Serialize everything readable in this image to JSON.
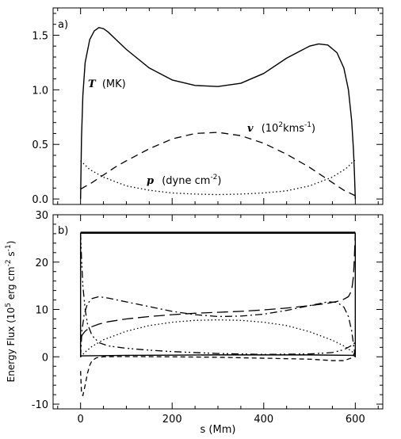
{
  "chart_data": [
    {
      "panel_label": "a)",
      "type": "line",
      "xlim": [
        -60,
        660
      ],
      "ylim": [
        -0.05,
        1.75
      ],
      "yticks": [
        "0.0",
        "0.5",
        "1.0",
        "1.5"
      ],
      "ytick_values": [
        0.0,
        0.5,
        1.0,
        1.5
      ],
      "series": [
        {
          "label_var": "T",
          "label_unit": "(MK)",
          "style": "solid",
          "x": [
            0,
            2,
            5,
            10,
            20,
            30,
            40,
            50,
            60,
            80,
            100,
            150,
            200,
            250,
            300,
            350,
            400,
            450,
            500,
            520,
            540,
            560,
            575,
            585,
            592,
            596,
            598,
            600
          ],
          "y": [
            0.0,
            0.55,
            0.95,
            1.25,
            1.46,
            1.54,
            1.57,
            1.56,
            1.53,
            1.45,
            1.37,
            1.2,
            1.09,
            1.04,
            1.03,
            1.06,
            1.15,
            1.29,
            1.4,
            1.42,
            1.41,
            1.34,
            1.2,
            1.0,
            0.72,
            0.45,
            0.25,
            0.0
          ]
        },
        {
          "label_var": "v",
          "label_unit": "(10",
          "label_sup": "2",
          "label_unit2": "kms",
          "label_sup2": "-1",
          "label_close": ")",
          "style": "dashed",
          "x": [
            0,
            25,
            50,
            75,
            100,
            150,
            200,
            250,
            300,
            350,
            400,
            450,
            500,
            525,
            550,
            575,
            600
          ],
          "y": [
            0.09,
            0.15,
            0.22,
            0.29,
            0.35,
            0.46,
            0.55,
            0.6,
            0.61,
            0.58,
            0.51,
            0.41,
            0.29,
            0.22,
            0.15,
            0.08,
            0.03
          ]
        },
        {
          "label_var": "p",
          "label_unit": "(dyne cm",
          "label_sup": "-2",
          "label_close": ")",
          "style": "dotted",
          "x": [
            0,
            20,
            50,
            100,
            150,
            200,
            250,
            300,
            350,
            400,
            450,
            500,
            550,
            580,
            600
          ],
          "y": [
            0.35,
            0.27,
            0.2,
            0.12,
            0.08,
            0.055,
            0.045,
            0.04,
            0.045,
            0.055,
            0.075,
            0.12,
            0.2,
            0.28,
            0.36
          ]
        }
      ]
    },
    {
      "panel_label": "b)",
      "type": "line",
      "xlim": [
        -60,
        660
      ],
      "ylim": [
        -11,
        30
      ],
      "xticks": [
        "0",
        "200",
        "400",
        "600"
      ],
      "xtick_values": [
        0,
        200,
        400,
        600
      ],
      "yticks": [
        "-10",
        "0",
        "10",
        "20",
        "30"
      ],
      "ytick_values": [
        -10,
        0,
        10,
        20,
        30
      ],
      "xlabel": "s (Mm)",
      "ylabel": "Energy Flux (10",
      "ylabel_sup": "5",
      "ylabel_mid": " erg cm",
      "ylabel_sup2": "-2",
      "ylabel_mid2": " s",
      "ylabel_sup3": "-1",
      "ylabel_close": ")",
      "series": [
        {
          "style": "thick-solid",
          "x": [
            0,
            600
          ],
          "y": [
            26.2,
            26.2
          ]
        },
        {
          "style": "solid",
          "x": [
            0,
            0,
            2,
            5,
            50,
            100,
            200,
            300,
            400,
            500,
            595,
            598,
            600,
            600
          ],
          "y": [
            26.2,
            0.0,
            0.2,
            0.2,
            0.25,
            0.3,
            0.35,
            0.4,
            0.4,
            0.4,
            0.3,
            0.2,
            0.0,
            26.2
          ]
        },
        {
          "style": "long-dashed",
          "x": [
            0,
            5,
            10,
            20,
            40,
            60,
            100,
            150,
            200,
            250,
            300,
            350,
            400,
            450,
            500,
            540,
            570,
            585,
            592,
            596,
            598,
            600
          ],
          "y": [
            4.0,
            4.8,
            5.4,
            6.2,
            6.9,
            7.4,
            8.0,
            8.5,
            8.9,
            9.2,
            9.4,
            9.6,
            9.9,
            10.3,
            10.8,
            11.3,
            11.9,
            12.7,
            14.0,
            17.0,
            21.0,
            26.2
          ]
        },
        {
          "style": "dash-dot",
          "x": [
            0,
            3,
            8,
            15,
            25,
            40,
            60,
            100,
            150,
            200,
            250,
            300,
            350,
            400,
            450,
            500,
            540,
            560,
            575,
            585,
            592,
            597,
            600
          ],
          "y": [
            0.0,
            5.5,
            9.0,
            11.2,
            12.3,
            12.7,
            12.4,
            11.6,
            10.6,
            9.6,
            8.9,
            8.5,
            8.6,
            9.0,
            9.8,
            10.8,
            11.6,
            11.5,
            10.5,
            8.5,
            5.5,
            2.0,
            0.0
          ]
        },
        {
          "style": "dot-dot-dash",
          "x": [
            0,
            2,
            5,
            10,
            15,
            25,
            40,
            60,
            100,
            150,
            200,
            300,
            400,
            500,
            550,
            575,
            590,
            597,
            600
          ],
          "y": [
            26.2,
            21.0,
            15.0,
            10.0,
            7.0,
            4.5,
            3.0,
            2.3,
            1.8,
            1.4,
            1.1,
            0.7,
            0.5,
            0.6,
            0.9,
            1.5,
            2.3,
            2.8,
            3.0
          ]
        },
        {
          "style": "dotted",
          "x": [
            0,
            10,
            25,
            50,
            100,
            150,
            200,
            250,
            300,
            350,
            400,
            450,
            500,
            550,
            575,
            590,
            600
          ],
          "y": [
            0.0,
            1.0,
            2.2,
            3.6,
            5.4,
            6.6,
            7.3,
            7.7,
            7.8,
            7.7,
            7.3,
            6.6,
            5.3,
            3.5,
            2.3,
            1.3,
            0.5
          ]
        },
        {
          "style": "short-dashed",
          "x": [
            0,
            2,
            5,
            10,
            15,
            20,
            25,
            35,
            50,
            80,
            120,
            200,
            300,
            400,
            500,
            550,
            575,
            590,
            597,
            600
          ],
          "y": [
            -3.0,
            -7.5,
            -8.2,
            -6.0,
            -3.5,
            -1.8,
            -0.8,
            -0.2,
            0.0,
            0.05,
            0.05,
            0.0,
            -0.1,
            -0.3,
            -0.5,
            -0.8,
            -0.8,
            -0.3,
            0.5,
            1.5
          ]
        }
      ]
    }
  ]
}
